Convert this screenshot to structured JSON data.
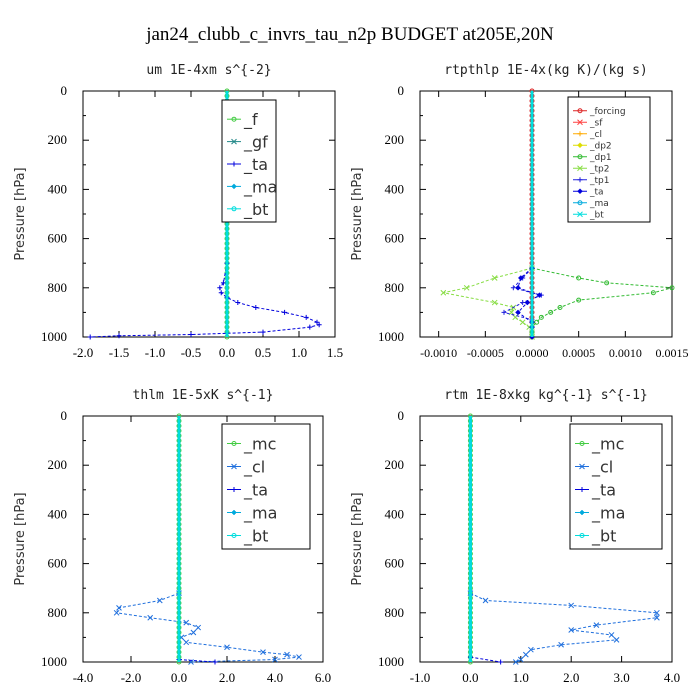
{
  "title": "jan24_clubb_c_invrs_tau_n2p  BUDGET at205E,20N",
  "colors": {
    "forcing": "#dd2222",
    "sf": "#ff4040",
    "cl": "#ffaa00",
    "dp2": "#dddd00",
    "dp1": "#33bb33",
    "tp2": "#88dd44",
    "tp1": "#2222dd",
    "ta": "#0000dd",
    "ma": "#00aadd",
    "bt": "#00dddd",
    "f": "#44cc44",
    "gf": "#228888",
    "mc": "#44cc44",
    "cl_blue": "#1f6fdd"
  },
  "chart_data": [
    {
      "type": "line",
      "title": "um   1E-4xm s^{-2}",
      "ylabel": "Pressure [hPa]",
      "xlim": [
        -2.0,
        1.5
      ],
      "ylim": [
        1000,
        0
      ],
      "xticks": [
        -2.0,
        -1.5,
        -1.0,
        -0.5,
        0.0,
        0.5,
        1.0,
        1.5
      ],
      "xtick_labels": [
        "-2.0",
        "-1.5",
        "-1.0",
        "-0.5",
        "0.0",
        "0.5",
        "1.0",
        "1.5"
      ],
      "yticks": [
        0,
        200,
        400,
        600,
        800,
        1000
      ],
      "legend_position": "top-right",
      "series": [
        {
          "name": "_f",
          "color_key": "f",
          "p": [
            0,
            1000
          ],
          "v": [
            0,
            0
          ]
        },
        {
          "name": "_gf",
          "color_key": "gf",
          "p": [
            0,
            1000
          ],
          "v": [
            0,
            0
          ]
        },
        {
          "name": "_ta",
          "color_key": "ta",
          "p": [
            700,
            780,
            800,
            820,
            840,
            860,
            880,
            900,
            920,
            940,
            950,
            960,
            980,
            990,
            995,
            1000
          ],
          "v": [
            0,
            -0.05,
            -0.1,
            -0.08,
            0.0,
            0.15,
            0.4,
            0.8,
            1.1,
            1.25,
            1.28,
            1.15,
            0.5,
            -0.5,
            -1.5,
            -1.9
          ]
        },
        {
          "name": "_ma",
          "color_key": "ma",
          "p": [
            0,
            1000
          ],
          "v": [
            0,
            0
          ]
        },
        {
          "name": "_bt",
          "color_key": "bt",
          "p": [
            0,
            1000
          ],
          "v": [
            0,
            0
          ]
        }
      ]
    },
    {
      "type": "line",
      "title": "rtpthlp   1E-4x(kg K)/(kg s)",
      "ylabel": "Pressure [hPa]",
      "xlim": [
        -0.0012,
        0.0015
      ],
      "ylim": [
        1000,
        0
      ],
      "xticks": [
        -0.001,
        -0.0005,
        0.0,
        0.0005,
        0.001,
        0.0015
      ],
      "xtick_labels": [
        "-0.0010",
        "-0.0005",
        "0.0000",
        "0.0005",
        "0.0010",
        "0.0015"
      ],
      "yticks": [
        0,
        200,
        400,
        600,
        800,
        1000
      ],
      "legend_position": "top-right",
      "series": [
        {
          "name": "_forcing",
          "color_key": "forcing",
          "p": [
            0,
            1000
          ],
          "v": [
            0,
            0
          ]
        },
        {
          "name": "_sf",
          "color_key": "sf",
          "p": [
            0,
            1000
          ],
          "v": [
            0,
            0
          ]
        },
        {
          "name": "_cl",
          "color_key": "cl",
          "p": [
            0,
            1000
          ],
          "v": [
            0,
            0
          ]
        },
        {
          "name": "_dp2",
          "color_key": "dp2",
          "p": [
            0,
            1000
          ],
          "v": [
            0,
            0
          ]
        },
        {
          "name": "_dp1",
          "color_key": "dp1",
          "p": [
            720,
            760,
            780,
            800,
            820,
            850,
            880,
            900,
            920,
            940,
            960,
            980,
            1000
          ],
          "v": [
            0,
            0.0005,
            0.0008,
            0.0015,
            0.0013,
            0.0005,
            0.0003,
            0.0002,
            0.0001,
            5e-05,
            0,
            0,
            0
          ]
        },
        {
          "name": "_tp2",
          "color_key": "tp2",
          "p": [
            720,
            760,
            800,
            820,
            860,
            880,
            900,
            920,
            940,
            960,
            980,
            1000
          ],
          "v": [
            0,
            -0.0004,
            -0.0007,
            -0.00095,
            -0.0004,
            -0.0002,
            -0.00022,
            -0.00018,
            -0.0001,
            -3e-05,
            0,
            0
          ]
        },
        {
          "name": "_tp1",
          "color_key": "tp1",
          "p": [
            720,
            760,
            800,
            830,
            860,
            900,
            930,
            960,
            1000
          ],
          "v": [
            0,
            -0.0001,
            -0.0002,
            0.0001,
            -0.0001,
            -0.0003,
            0.0,
            0.0,
            0
          ]
        },
        {
          "name": "_ta",
          "color_key": "ta",
          "p": [
            720,
            760,
            800,
            830,
            860,
            900,
            940,
            960,
            1000
          ],
          "v": [
            0,
            -0.00012,
            -0.00015,
            8e-05,
            -5e-05,
            -0.00015,
            0.0,
            0.0,
            0
          ]
        },
        {
          "name": "_ma",
          "color_key": "ma",
          "p": [
            0,
            1000
          ],
          "v": [
            0,
            0
          ]
        },
        {
          "name": "_bt",
          "color_key": "bt",
          "p": [
            0,
            1000
          ],
          "v": [
            0,
            0
          ]
        }
      ]
    },
    {
      "type": "line",
      "title": "thlm   1E-5xK  s^{-1}",
      "ylabel": "Pressure [hPa]",
      "xlim": [
        -4.0,
        6.0
      ],
      "ylim": [
        1000,
        0
      ],
      "xticks": [
        -4.0,
        -2.0,
        0.0,
        2.0,
        4.0,
        6.0
      ],
      "xtick_labels": [
        "-4.0",
        "-2.0",
        "0.0",
        "2.0",
        "4.0",
        "6.0"
      ],
      "yticks": [
        0,
        200,
        400,
        600,
        800,
        1000
      ],
      "legend_position": "top-right",
      "series": [
        {
          "name": "_mc",
          "color_key": "mc",
          "p": [
            0,
            1000
          ],
          "v": [
            0,
            0
          ]
        },
        {
          "name": "_cl",
          "color_key": "cl_blue",
          "p": [
            720,
            750,
            780,
            800,
            820,
            840,
            860,
            880,
            900,
            920,
            940,
            960,
            970,
            980,
            990,
            1000
          ],
          "v": [
            0,
            -0.8,
            -2.5,
            -2.6,
            -1.2,
            0.3,
            0.8,
            0.6,
            0.1,
            0.3,
            2.0,
            3.5,
            4.5,
            5.0,
            4.0,
            0.5
          ]
        },
        {
          "name": "_ta",
          "color_key": "ta",
          "p": [
            990,
            1000
          ],
          "v": [
            0,
            1.5
          ]
        },
        {
          "name": "_ma",
          "color_key": "ma",
          "p": [
            0,
            1000
          ],
          "v": [
            0,
            0
          ]
        },
        {
          "name": "_bt",
          "color_key": "bt",
          "p": [
            0,
            1000
          ],
          "v": [
            0,
            0
          ]
        }
      ]
    },
    {
      "type": "line",
      "title": "rtm   1E-8xkg kg^{-1} s^{-1}",
      "ylabel": "Pressure [hPa]",
      "xlim": [
        -1.0,
        4.0
      ],
      "ylim": [
        1000,
        0
      ],
      "xticks": [
        -1.0,
        0.0,
        1.0,
        2.0,
        3.0,
        4.0
      ],
      "xtick_labels": [
        "-1.0",
        "0.0",
        "1.0",
        "2.0",
        "3.0",
        "4.0"
      ],
      "yticks": [
        0,
        200,
        400,
        600,
        800,
        1000
      ],
      "legend_position": "top-right",
      "series": [
        {
          "name": "_mc",
          "color_key": "mc",
          "p": [
            0,
            1000
          ],
          "v": [
            0,
            0
          ]
        },
        {
          "name": "_cl",
          "color_key": "cl_blue",
          "p": [
            720,
            750,
            770,
            800,
            820,
            850,
            870,
            890,
            910,
            930,
            950,
            970,
            990,
            1000
          ],
          "v": [
            0,
            0.3,
            2.0,
            3.7,
            3.7,
            2.5,
            2.0,
            2.8,
            2.9,
            1.8,
            1.2,
            1.1,
            1.0,
            0.9
          ]
        },
        {
          "name": "_ta",
          "color_key": "ta",
          "p": [
            980,
            1000
          ],
          "v": [
            0,
            0.6
          ]
        },
        {
          "name": "_ma",
          "color_key": "ma",
          "p": [
            0,
            1000
          ],
          "v": [
            0,
            0
          ]
        },
        {
          "name": "_bt",
          "color_key": "bt",
          "p": [
            0,
            1000
          ],
          "v": [
            0,
            0
          ]
        }
      ]
    }
  ]
}
